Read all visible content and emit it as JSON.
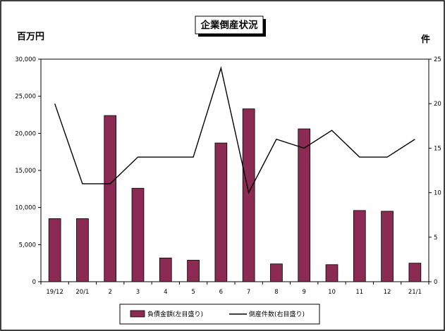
{
  "chart_data": {
    "type": "bar",
    "title": "企業倒産状況",
    "y_left_unit": "百万円",
    "y_right_unit": "件",
    "categories": [
      "19/12",
      "20/1",
      "2",
      "3",
      "4",
      "5",
      "6",
      "7",
      "8",
      "9",
      "10",
      "11",
      "12",
      "21/1"
    ],
    "y_left_ticks": [
      "0",
      "5,000",
      "10,000",
      "15,000",
      "20,000",
      "25,000",
      "30,000"
    ],
    "y_right_ticks": [
      "0",
      "5",
      "10",
      "15",
      "20",
      "25"
    ],
    "ylim_left": [
      0,
      30000
    ],
    "ylim_right": [
      0,
      25
    ],
    "series": [
      {
        "name": "負債金額(左目盛り)",
        "type": "bar",
        "axis": "left",
        "color": "#8b2a52",
        "values": [
          8500,
          8500,
          22400,
          12600,
          3200,
          2900,
          18700,
          23300,
          2400,
          20600,
          2300,
          9600,
          9500,
          2500
        ]
      },
      {
        "name": "倒産件数(右目盛り)",
        "type": "line",
        "axis": "right",
        "color": "#000000",
        "values": [
          20,
          11,
          11,
          14,
          14,
          14,
          24,
          10,
          16,
          15,
          17,
          14,
          14,
          16
        ]
      }
    ],
    "grid": false,
    "legend_position": "bottom"
  }
}
